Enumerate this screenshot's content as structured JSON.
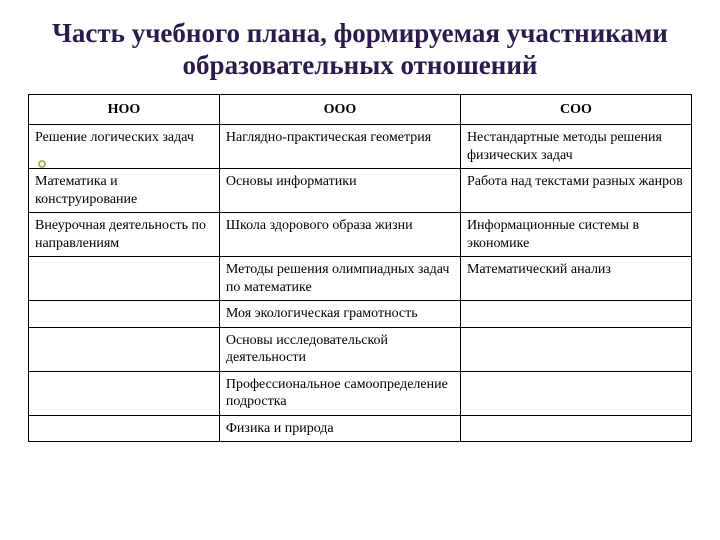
{
  "title": "Часть учебного плана, формируемая участниками образовательных отношений",
  "table": {
    "columns": [
      "НОО",
      "ООО",
      "СОО"
    ],
    "rows": [
      [
        "Решение логических задач",
        "Наглядно-практическая геометрия",
        "Нестандартные методы решения физических задач"
      ],
      [
        "Математика и конструирование",
        "Основы информатики",
        "Работа над текстами разных жанров"
      ],
      [
        "Внеурочная деятельность по направлениям",
        "Школа здорового образа жизни",
        "Информационные системы в экономике"
      ],
      [
        "",
        "Методы решения олимпиадных задач по математике",
        "Математический анализ"
      ],
      [
        "",
        "Моя экологическая грамотность",
        ""
      ],
      [
        "",
        "Основы исследовательской деятельности",
        ""
      ],
      [
        "",
        "Профессиональное самоопределение подростка",
        ""
      ],
      [
        "",
        "Физика и природа",
        ""
      ]
    ],
    "title_color": "#2b1b4a",
    "title_fontsize": 27,
    "cell_fontsize": 14,
    "border_color": "#000000",
    "background_color": "#ffffff",
    "bullet_color": "#9fbf5f"
  }
}
